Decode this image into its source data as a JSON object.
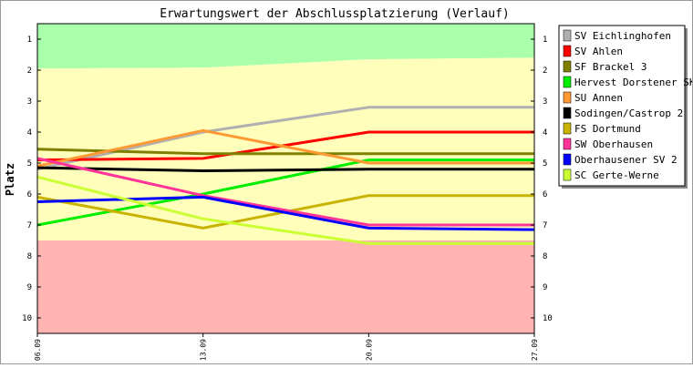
{
  "chart_data": {
    "type": "line",
    "title": "Erwartungswert der Abschlussplatzierung (Verlauf)",
    "ylabel": "Platz",
    "xlabel": "",
    "x": [
      "06.09",
      "13.09",
      "20.09",
      "27.09"
    ],
    "y_ticks": [
      "1",
      "2",
      "3",
      "4",
      "5",
      "6",
      "7",
      "8",
      "9",
      "10"
    ],
    "ylim": [
      0.5,
      10.5
    ],
    "y_inverted": true,
    "grid": false,
    "legend_position": "right",
    "zones": [
      {
        "from": [
          0.5,
          0.5,
          0.5,
          0.5
        ],
        "to": [
          1.95,
          1.92,
          1.65,
          1.6
        ],
        "color": "#aaffaa"
      },
      {
        "from": [
          1.95,
          1.92,
          1.65,
          1.6
        ],
        "to": [
          7.5,
          7.5,
          7.5,
          7.5
        ],
        "color": "#ffffbb"
      },
      {
        "from": [
          7.5,
          7.5,
          7.5,
          7.5
        ],
        "to": [
          10.5,
          10.5,
          10.5,
          10.5
        ],
        "color": "#ffb3b3"
      }
    ],
    "series": [
      {
        "name": "SV Eichlinghofen",
        "color": "#b0b0b0",
        "values": [
          5.2,
          4.0,
          3.2,
          3.2
        ]
      },
      {
        "name": "SV Ahlen",
        "color": "#ff0000",
        "values": [
          4.9,
          4.85,
          4.0,
          4.0
        ]
      },
      {
        "name": "SF Brackel 3",
        "color": "#808000",
        "values": [
          4.55,
          4.7,
          4.7,
          4.7
        ]
      },
      {
        "name": "Hervest Dorstener SK",
        "color": "#00ee00",
        "values": [
          7.0,
          6.0,
          4.9,
          4.9
        ]
      },
      {
        "name": "SU Annen",
        "color": "#ff9933",
        "values": [
          5.1,
          3.95,
          5.0,
          5.0
        ]
      },
      {
        "name": "Sodingen/Castrop 2",
        "color": "#000000",
        "values": [
          5.15,
          5.25,
          5.2,
          5.2
        ]
      },
      {
        "name": "FS Dortmund",
        "color": "#c8b400",
        "values": [
          6.1,
          7.1,
          6.05,
          6.05
        ]
      },
      {
        "name": "SW Oberhausen",
        "color": "#ff3399",
        "values": [
          4.85,
          6.05,
          7.0,
          7.0
        ]
      },
      {
        "name": "Oberhausener SV 2",
        "color": "#0000ff",
        "values": [
          6.25,
          6.1,
          7.1,
          7.15
        ]
      },
      {
        "name": "SC Gerte-Werne",
        "color": "#ccff33",
        "values": [
          5.45,
          6.8,
          7.6,
          7.6
        ]
      }
    ]
  }
}
